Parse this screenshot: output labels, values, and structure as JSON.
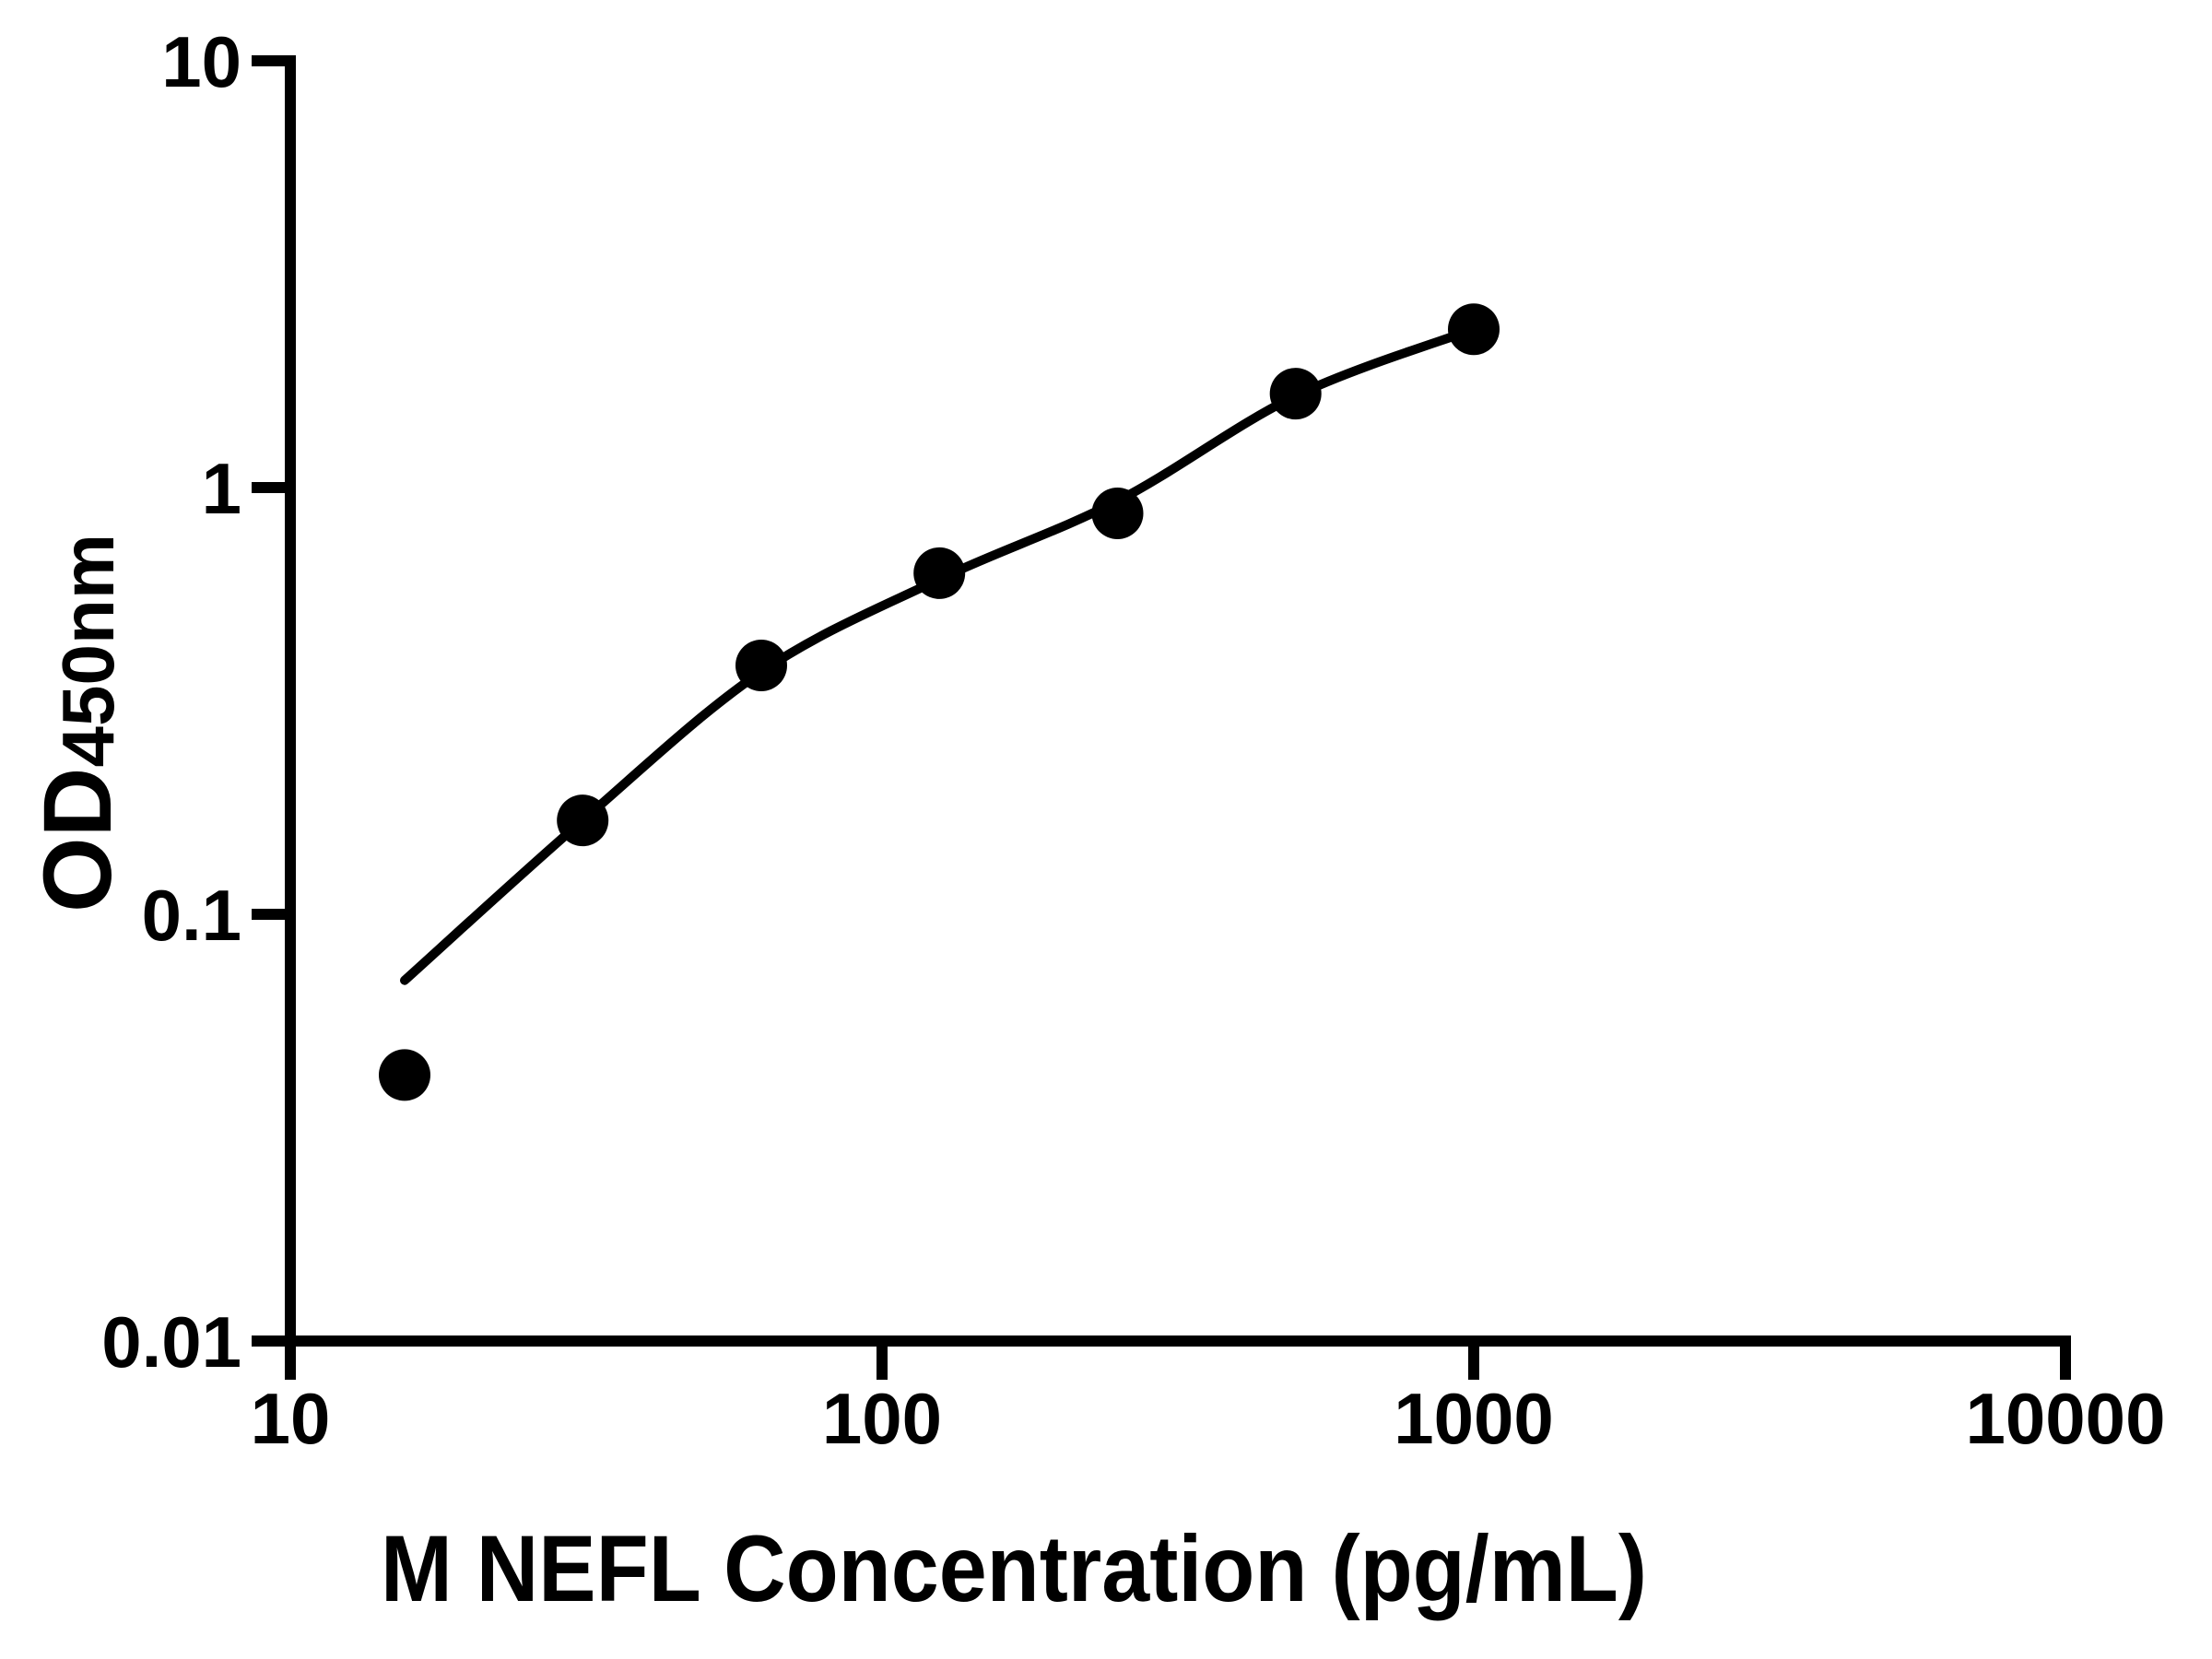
{
  "chart_data": {
    "type": "scatter",
    "title": "",
    "xlabel": "M NEFL Concentration (pg/mL)",
    "ylabel": "OD",
    "ylabel_subscript": "450nm",
    "grid": false,
    "legend": null,
    "background_color": "#ffffff",
    "foreground_color": "#000000",
    "x_axis": {
      "scale": "log",
      "range": [
        10,
        10000
      ],
      "ticks": [
        {
          "value": 10,
          "label": "10"
        },
        {
          "value": 100,
          "label": "100"
        },
        {
          "value": 1000,
          "label": "1000"
        },
        {
          "value": 10000,
          "label": "10000"
        }
      ]
    },
    "y_axis": {
      "scale": "log",
      "range": [
        0.01,
        10
      ],
      "ticks": [
        {
          "value": 10,
          "label": "10"
        },
        {
          "value": 1,
          "label": "1"
        },
        {
          "value": 0.1,
          "label": "0.1"
        },
        {
          "value": 0.01,
          "label": "0.01"
        }
      ]
    },
    "series": [
      {
        "name": "fitted-curve",
        "type": "line",
        "color": "#000000",
        "stroke_width_px": 10,
        "points": [
          {
            "x": 15.6,
            "y": 0.07
          },
          {
            "x": 31.2,
            "y": 0.166
          },
          {
            "x": 62.5,
            "y": 0.37
          },
          {
            "x": 125,
            "y": 0.61
          },
          {
            "x": 250,
            "y": 0.93
          },
          {
            "x": 500,
            "y": 1.64
          },
          {
            "x": 1000,
            "y": 2.35
          }
        ]
      },
      {
        "name": "standard-points",
        "type": "scatter",
        "marker": "filled-circle",
        "marker_radius_px": 28,
        "color": "#000000",
        "points": [
          {
            "x": 15.6,
            "y": 0.042
          },
          {
            "x": 31.2,
            "y": 0.166
          },
          {
            "x": 62.5,
            "y": 0.383
          },
          {
            "x": 125,
            "y": 0.63
          },
          {
            "x": 250,
            "y": 0.87
          },
          {
            "x": 500,
            "y": 1.66
          },
          {
            "x": 1000,
            "y": 2.35
          }
        ]
      }
    ]
  }
}
